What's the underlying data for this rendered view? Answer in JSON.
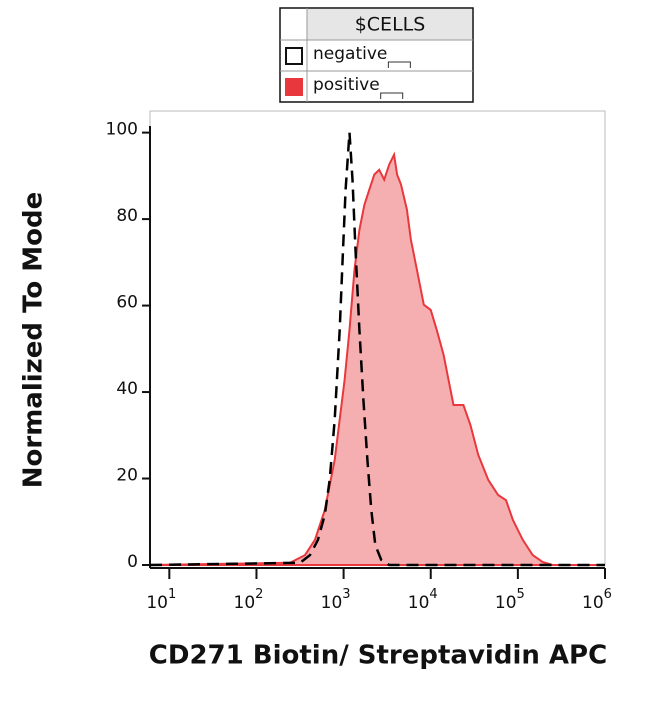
{
  "chart_data": {
    "type": "line",
    "x_label": "CD271 Biotin/ Streptavidin APC",
    "y_label": "Normalized To Mode",
    "legend_title": "$CELLS",
    "xscale": "log",
    "xlim": [
      6,
      1000000
    ],
    "ylim": [
      0,
      105
    ],
    "xticks": [
      {
        "value": 10,
        "label": "10",
        "exponent": "1"
      },
      {
        "value": 100,
        "label": "10",
        "exponent": "2"
      },
      {
        "value": 1000,
        "label": "10",
        "exponent": "3"
      },
      {
        "value": 10000,
        "label": "10",
        "exponent": "4"
      },
      {
        "value": 100000,
        "label": "10",
        "exponent": "5"
      },
      {
        "value": 1000000,
        "label": "10",
        "exponent": "6"
      }
    ],
    "yticks": [
      0,
      20,
      40,
      60,
      80,
      100
    ],
    "series": [
      {
        "name": "negative",
        "color": "#000000",
        "dashed": true,
        "filled": false,
        "x": [
          6,
          316,
          411,
          507,
          608,
          693,
          791,
          902,
          975,
          1054,
          1170,
          1264,
          1368,
          1520,
          1688,
          1874,
          2080,
          2310,
          2704,
          3333,
          1000000
        ],
        "values": [
          0,
          0.5,
          2.3,
          5.8,
          11.6,
          19.7,
          33.6,
          54.4,
          70.6,
          86.8,
          100,
          89.1,
          72.9,
          54.4,
          38.2,
          24.3,
          12.7,
          4.6,
          1.2,
          0,
          0
        ]
      },
      {
        "name": "positive",
        "color": "#e8383d",
        "dashed": false,
        "filled": true,
        "x": [
          6,
          243,
          361,
          468,
          608,
          791,
          1026,
          1170,
          1333,
          1520,
          1733,
          1974,
          2250,
          2565,
          2924,
          3333,
          3800,
          4111,
          4564,
          5333,
          5926,
          6935,
          8318,
          10000,
          11700,
          14060,
          18250,
          23700,
          28500,
          35100,
          45600,
          59300,
          73100,
          87800,
          114000,
          148000,
          192000,
          250000,
          370000,
          1000000
        ],
        "values": [
          0,
          0.5,
          2.3,
          5.8,
          12.7,
          24.3,
          42.8,
          54.4,
          68.3,
          77.5,
          83.3,
          86.8,
          90.3,
          91.4,
          89.1,
          92.6,
          94.9,
          90.3,
          88,
          82.2,
          75.2,
          68.3,
          60.2,
          59,
          54.4,
          48.6,
          37,
          37,
          32.4,
          25.5,
          19.7,
          16.2,
          15,
          10.4,
          5.8,
          2.3,
          0.7,
          0,
          0,
          0
        ]
      }
    ]
  }
}
